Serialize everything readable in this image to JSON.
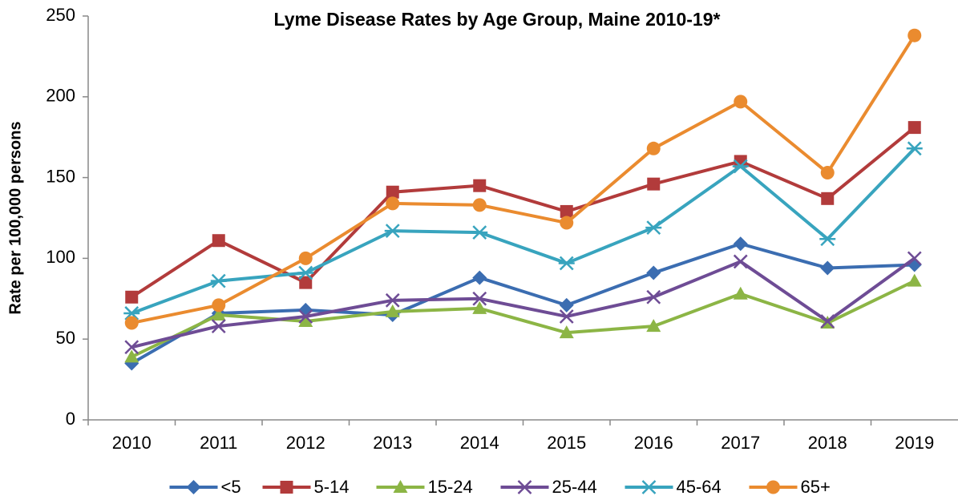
{
  "chart_data": {
    "type": "line",
    "title": "Lyme Disease Rates by Age Group, Maine 2010-19*",
    "y_label": "Rate per 100,000 persons",
    "categories": [
      "2010",
      "2011",
      "2012",
      "2013",
      "2014",
      "2015",
      "2016",
      "2017",
      "2018",
      "2019"
    ],
    "series": [
      {
        "name": "<5",
        "color": "#3b6db1",
        "marker": "diamond",
        "values": [
          35,
          66,
          68,
          65,
          88,
          71,
          91,
          109,
          94,
          96
        ]
      },
      {
        "name": "5-14",
        "color": "#b23b3b",
        "marker": "square",
        "values": [
          76,
          111,
          85,
          141,
          145,
          129,
          146,
          160,
          137,
          181
        ]
      },
      {
        "name": "15-24",
        "color": "#8cb545",
        "marker": "triangle",
        "values": [
          39,
          65,
          61,
          67,
          69,
          54,
          58,
          78,
          60,
          86
        ]
      },
      {
        "name": "25-44",
        "color": "#6e4c95",
        "marker": "x",
        "values": [
          45,
          58,
          64,
          74,
          75,
          64,
          76,
          98,
          61,
          100
        ]
      },
      {
        "name": "45-64",
        "color": "#38a4be",
        "marker": "star",
        "values": [
          66,
          86,
          91,
          117,
          116,
          97,
          119,
          157,
          112,
          168
        ]
      },
      {
        "name": "65+",
        "color": "#ea8b2f",
        "marker": "circle",
        "values": [
          60,
          71,
          100,
          134,
          133,
          122,
          168,
          197,
          153,
          238
        ]
      }
    ],
    "ylim": [
      0,
      250
    ],
    "yticks": [
      0,
      50,
      100,
      150,
      200,
      250
    ],
    "grid": false,
    "legend": "bottom"
  }
}
